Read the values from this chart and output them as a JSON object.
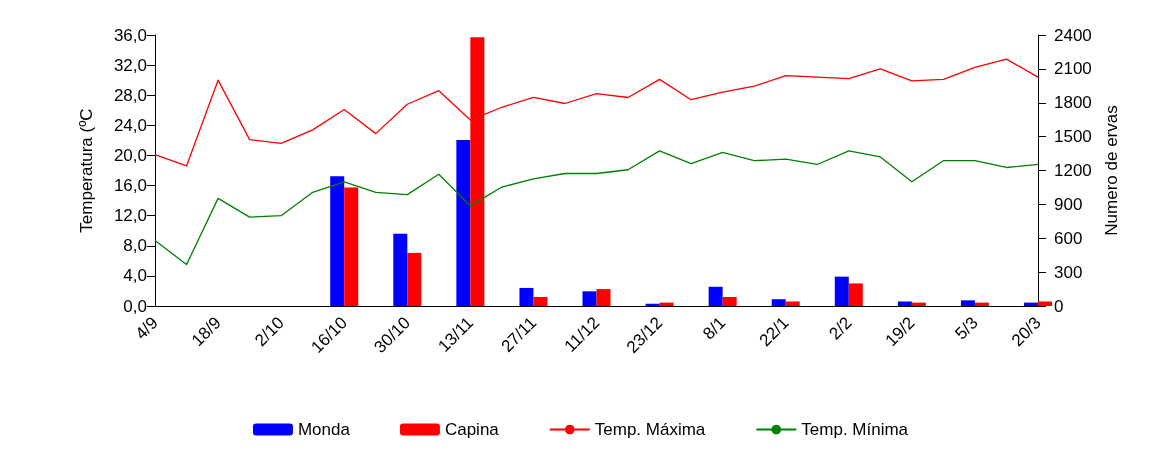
{
  "chart_data": {
    "type": "bar",
    "ylabel": "Temperatura (ºC",
    "y2label": "Numero de ervas",
    "categories": [
      "4/9",
      null,
      "18/9",
      null,
      "2/10",
      null,
      "16/10",
      null,
      "30/10",
      null,
      "13/11",
      null,
      "27/11",
      null,
      "11/12",
      null,
      "23/12",
      null,
      "8/1",
      null,
      "22/1",
      null,
      "2/2",
      null,
      "19/2",
      null,
      "5/3",
      null,
      "20/3"
    ],
    "series": [
      {
        "name": "Monda",
        "axis": "y2",
        "color": "#0000ff",
        "values": [
          0,
          null,
          0,
          null,
          0,
          null,
          1150,
          null,
          640,
          null,
          1470,
          null,
          160,
          null,
          130,
          null,
          20,
          null,
          170,
          null,
          60,
          null,
          260,
          null,
          40,
          null,
          50,
          null,
          30
        ]
      },
      {
        "name": "Capina",
        "axis": "y2",
        "color": "#ff0000",
        "values": [
          0,
          null,
          0,
          null,
          0,
          null,
          1050,
          null,
          470,
          null,
          2380,
          null,
          80,
          null,
          150,
          null,
          30,
          null,
          80,
          null,
          40,
          null,
          200,
          null,
          30,
          null,
          30,
          null,
          40
        ]
      },
      {
        "name": "Temp. Máxima",
        "type": "line",
        "color": "#ff0000",
        "values": [
          20.1,
          18.6,
          30.0,
          22.1,
          21.6,
          23.4,
          26.1,
          22.9,
          26.8,
          28.6,
          24.7,
          26.4,
          27.7,
          26.9,
          28.2,
          27.7,
          30.1,
          27.4,
          28.4,
          29.2,
          30.6,
          30.4,
          30.2,
          31.5,
          29.9,
          30.1,
          31.7,
          32.8,
          30.4
        ]
      },
      {
        "name": "Temp. Mínima",
        "type": "line",
        "color": "#008000",
        "values": [
          8.7,
          5.5,
          14.3,
          11.8,
          12.0,
          15.1,
          16.5,
          15.1,
          14.8,
          17.5,
          13.3,
          15.8,
          16.9,
          17.6,
          17.6,
          18.1,
          20.6,
          18.9,
          20.4,
          19.3,
          19.5,
          18.8,
          20.6,
          19.8,
          16.5,
          19.3,
          19.3,
          18.4,
          18.8
        ]
      }
    ],
    "ylim": [
      0,
      36
    ],
    "yticks": [
      {
        "value": 0,
        "label": "0,0"
      },
      {
        "value": 4,
        "label": "4,0"
      },
      {
        "value": 8,
        "label": "8,0"
      },
      {
        "value": 12,
        "label": "12,0"
      },
      {
        "value": 16,
        "label": "16,0"
      },
      {
        "value": 20,
        "label": "20,0"
      },
      {
        "value": 24,
        "label": "24,0"
      },
      {
        "value": 28,
        "label": "28,0"
      },
      {
        "value": 32,
        "label": "32,0"
      },
      {
        "value": 36,
        "label": "36,0"
      }
    ],
    "y2lim": [
      0,
      2400
    ],
    "y2ticks": [
      0,
      300,
      600,
      900,
      1200,
      1500,
      1800,
      2100,
      2400
    ],
    "grid": false,
    "legend": "bottom",
    "marker": "none",
    "line_style": "solid"
  }
}
